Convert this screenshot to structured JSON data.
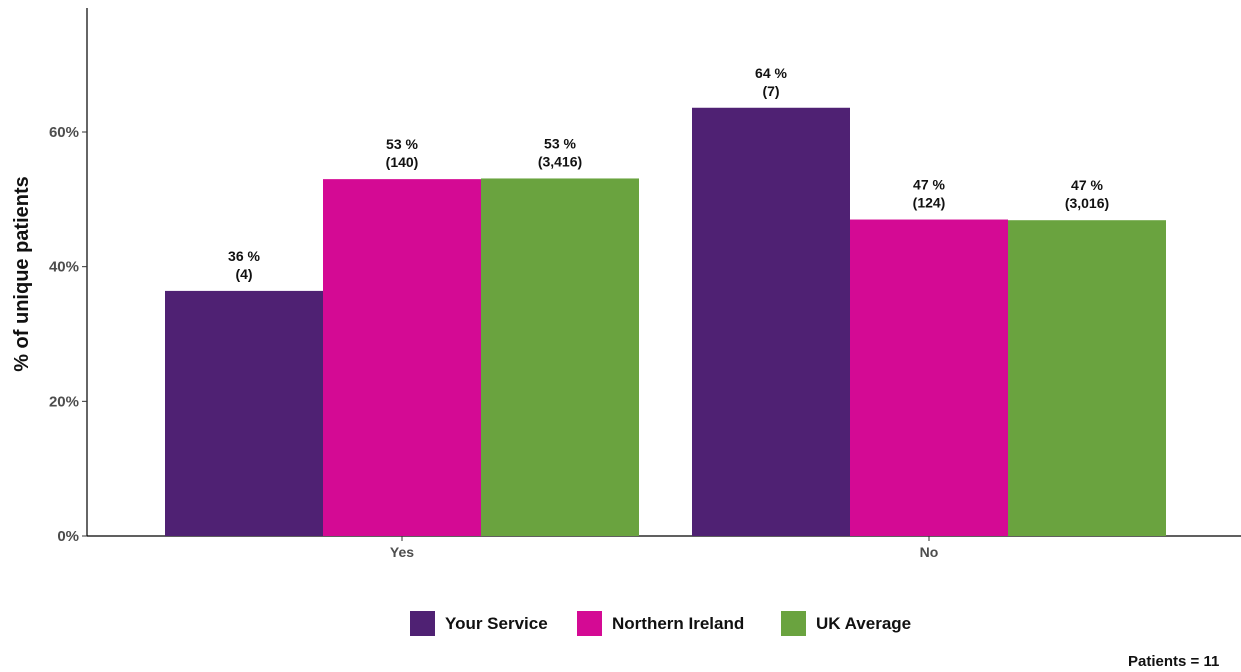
{
  "chart_data": {
    "type": "bar",
    "categories": [
      "Yes",
      "No"
    ],
    "series": [
      {
        "name": "Your Service",
        "color": "#4f2173",
        "values": [
          36.4,
          63.6
        ],
        "labels": [
          "36 %",
          "64 %"
        ],
        "counts": [
          "(4)",
          "(7)"
        ]
      },
      {
        "name": "Northern Ireland",
        "color": "#d40a94",
        "values": [
          53.0,
          47.0
        ],
        "labels": [
          "53 %",
          "47 %"
        ],
        "counts": [
          "(140)",
          "(124)"
        ]
      },
      {
        "name": "UK Average",
        "color": "#6aa33f",
        "values": [
          53.1,
          46.9
        ],
        "labels": [
          "53 %",
          "47 %"
        ],
        "counts": [
          "(3,416)",
          "(3,016)"
        ]
      }
    ],
    "ylabel": "% of unique patients",
    "xlabel": "",
    "ylim": [
      0,
      80
    ],
    "yticks": [
      0,
      20,
      40,
      60
    ],
    "ytick_labels": [
      "0%",
      "20%",
      "40%",
      "60%"
    ],
    "grid": false,
    "legend_position": "bottom"
  },
  "footer": "Patients = 11"
}
